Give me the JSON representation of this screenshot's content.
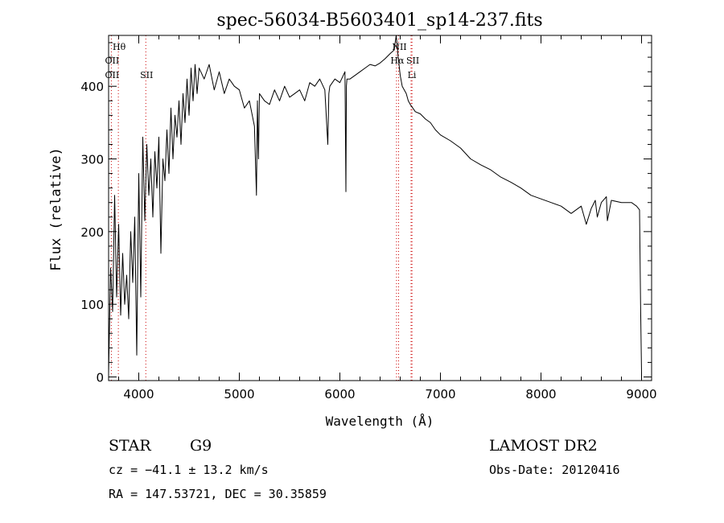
{
  "chart_data": {
    "type": "line",
    "title": "spec-56034-B5603401_sp14-237.fits",
    "xlabel": "Wavelength (Å)",
    "ylabel": "Flux (relative)",
    "xlim": [
      3700,
      9100
    ],
    "ylim": [
      -5,
      470
    ],
    "xticks": [
      {
        "v": 4000,
        "label": "4000"
      },
      {
        "v": 5000,
        "label": "5000"
      },
      {
        "v": 6000,
        "label": "6000"
      },
      {
        "v": 7000,
        "label": "7000"
      },
      {
        "v": 8000,
        "label": "8000"
      },
      {
        "v": 9000,
        "label": "9000"
      }
    ],
    "yticks": [
      {
        "v": 0,
        "label": "0"
      },
      {
        "v": 100,
        "label": "100"
      },
      {
        "v": 200,
        "label": "200"
      },
      {
        "v": 300,
        "label": "300"
      },
      {
        "v": 400,
        "label": "400"
      }
    ],
    "grid": false,
    "spectrum": {
      "x": [
        3700,
        3720,
        3740,
        3760,
        3780,
        3800,
        3820,
        3840,
        3860,
        3880,
        3900,
        3920,
        3940,
        3960,
        3980,
        4000,
        4020,
        4040,
        4060,
        4080,
        4100,
        4120,
        4140,
        4160,
        4180,
        4200,
        4220,
        4240,
        4260,
        4280,
        4300,
        4320,
        4340,
        4360,
        4380,
        4400,
        4420,
        4440,
        4460,
        4480,
        4500,
        4520,
        4540,
        4560,
        4580,
        4600,
        4650,
        4700,
        4750,
        4800,
        4850,
        4900,
        4950,
        5000,
        5050,
        5100,
        5150,
        5170,
        5180,
        5190,
        5200,
        5250,
        5300,
        5350,
        5400,
        5450,
        5500,
        5550,
        5600,
        5650,
        5700,
        5750,
        5800,
        5850,
        5880,
        5890,
        5900,
        5950,
        6000,
        6050,
        6060,
        6065,
        6070,
        6100,
        6150,
        6200,
        6250,
        6300,
        6350,
        6400,
        6450,
        6500,
        6540,
        6560,
        6570,
        6580,
        6600,
        6620,
        6640,
        6660,
        6680,
        6700,
        6750,
        6800,
        6850,
        6900,
        6950,
        7000,
        7100,
        7200,
        7300,
        7400,
        7500,
        7600,
        7700,
        7800,
        7900,
        8000,
        8100,
        8200,
        8300,
        8400,
        8450,
        8500,
        8540,
        8560,
        8600,
        8650,
        8660,
        8700,
        8800,
        8900,
        8950,
        8980,
        8990,
        9000
      ],
      "y": [
        5,
        150,
        90,
        250,
        110,
        210,
        85,
        170,
        100,
        140,
        80,
        200,
        130,
        220,
        30,
        280,
        110,
        330,
        215,
        320,
        250,
        300,
        220,
        310,
        260,
        330,
        170,
        300,
        270,
        340,
        280,
        370,
        300,
        360,
        330,
        380,
        320,
        390,
        350,
        410,
        360,
        425,
        380,
        430,
        390,
        425,
        410,
        430,
        395,
        420,
        390,
        410,
        400,
        395,
        370,
        380,
        345,
        250,
        380,
        300,
        390,
        380,
        375,
        395,
        380,
        400,
        385,
        390,
        395,
        380,
        405,
        400,
        410,
        395,
        320,
        390,
        400,
        410,
        405,
        420,
        255,
        400,
        410,
        410,
        415,
        420,
        425,
        430,
        428,
        432,
        438,
        445,
        450,
        470,
        455,
        440,
        415,
        400,
        395,
        390,
        380,
        375,
        365,
        362,
        355,
        350,
        340,
        333,
        325,
        315,
        300,
        292,
        285,
        275,
        268,
        260,
        250,
        245,
        240,
        235,
        225,
        235,
        210,
        232,
        243,
        220,
        240,
        248,
        215,
        243,
        240,
        240,
        235,
        230,
        100,
        5
      ]
    },
    "line_markers": [
      {
        "label": "Hθ",
        "x": 3797,
        "row": 1,
        "color": "#cc0000"
      },
      {
        "label": "OII",
        "x": 3727,
        "row": 2,
        "color": "#cc0000"
      },
      {
        "label": "OII",
        "x": 3727,
        "row": 3,
        "color": "#cc0000"
      },
      {
        "label": "SII",
        "x": 4070,
        "row": 3,
        "color": "#cc0000"
      },
      {
        "label": "NII",
        "x": 6584,
        "row": 1,
        "color": "#cc0000"
      },
      {
        "label": "Hα",
        "x": 6563,
        "row": 2,
        "color": "#cc0000"
      },
      {
        "label": "SII",
        "x": 6717,
        "row": 2,
        "color": "#cc0000"
      },
      {
        "label": "Li",
        "x": 6708,
        "row": 3,
        "color": "#cc0000"
      }
    ]
  },
  "info": {
    "class_label": "STAR",
    "subclass": "G9",
    "survey": "LAMOST DR2",
    "redshift_line": "cz = −41.1 ± 13.2 km/s",
    "obs_date": "Obs-Date: 20120416",
    "coords": "RA = 147.53721, DEC =  30.35859"
  }
}
